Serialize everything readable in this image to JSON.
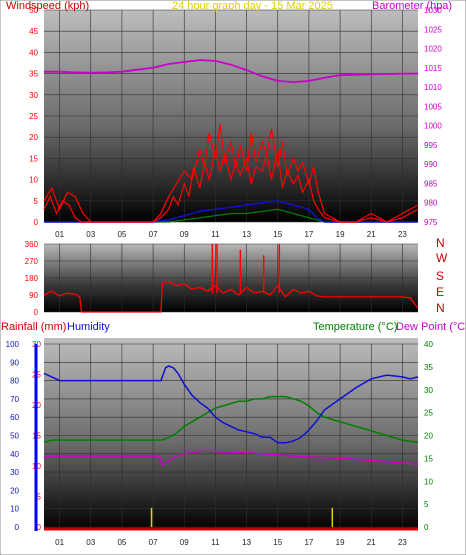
{
  "page": {
    "title": "24 hour graph day - 15 Mar 2025"
  },
  "colors": {
    "title": "#e0d000",
    "wind": "#ff0000",
    "barometer": "#cc00cc",
    "humidity": "#1010d0",
    "temperature": "#008000",
    "dewpoint": "#cc00cc",
    "rainfall": "#0000ff",
    "compass": "#cc0000",
    "grid": "#2e2e2e"
  },
  "chart_data": [
    {
      "id": "wind_baro",
      "type": "line",
      "title": "24 hour graph day - 15 Mar 2025",
      "ylabel_left": "Windspeed (kph)",
      "ylabel_right": "Barometer (hpa)",
      "ylim_left": [
        0,
        50
      ],
      "ylim_right": [
        975,
        1030
      ],
      "yticks_left": [
        "0",
        "5",
        "10",
        "15",
        "20",
        "25",
        "30",
        "35",
        "40",
        "45",
        "50"
      ],
      "yticks_right": [
        "975",
        "980",
        "985",
        "990",
        "995",
        "1000",
        "1005",
        "1010",
        "1015",
        "1020",
        "1025",
        "1030"
      ],
      "xlim": [
        0,
        24
      ],
      "xticks": [
        "01",
        "03",
        "05",
        "07",
        "09",
        "11",
        "13",
        "15",
        "17",
        "19",
        "21",
        "23"
      ],
      "grid": true,
      "series": [
        {
          "name": "Barometer",
          "axis": "right",
          "x": [
            0,
            1,
            2,
            3,
            4,
            5,
            6,
            7,
            8,
            9,
            10,
            11,
            12,
            13,
            14,
            15,
            16,
            17,
            18,
            19,
            20,
            21,
            22,
            23,
            24
          ],
          "values": [
            1014,
            1014,
            1013.8,
            1013.7,
            1013.8,
            1014,
            1014.5,
            1015,
            1016,
            1016.5,
            1017,
            1016.8,
            1015.8,
            1014.4,
            1012.8,
            1011.6,
            1011.3,
            1011.6,
            1012.4,
            1013.1,
            1013.2,
            1013.3,
            1013.4,
            1013.5,
            1013.5
          ]
        },
        {
          "name": "Windspeed",
          "axis": "left",
          "x": [
            0,
            0.4,
            0.8,
            1.2,
            1.6,
            2.0,
            2.4,
            3,
            4,
            5,
            6,
            7,
            7.5,
            8,
            8.3,
            8.6,
            9,
            9.3,
            9.6,
            10,
            10.3,
            10.6,
            11,
            11.3,
            11.6,
            12,
            12.3,
            12.6,
            13,
            13.3,
            13.6,
            14,
            14.3,
            14.6,
            15,
            15.3,
            15.6,
            16,
            16.3,
            16.6,
            17,
            17.3,
            17.6,
            18,
            19,
            20,
            21,
            22,
            23,
            23.5,
            24
          ],
          "values": [
            3,
            6,
            2,
            5,
            4,
            1,
            0,
            0,
            0,
            0,
            0,
            0,
            1,
            3,
            6,
            4,
            9,
            6,
            13,
            8,
            14,
            10,
            17,
            12,
            16,
            10,
            14,
            11,
            15,
            9,
            13,
            12,
            16,
            10,
            17,
            8,
            12,
            9,
            11,
            7,
            10,
            5,
            3,
            1,
            0,
            0,
            1,
            0,
            1,
            2,
            3
          ]
        },
        {
          "name": "Gust",
          "axis": "left",
          "x": [
            0,
            0.5,
            1,
            1.5,
            2,
            2.5,
            3,
            6,
            7,
            7.5,
            8,
            8.5,
            9,
            9.5,
            10,
            10.3,
            10.6,
            11,
            11.3,
            11.6,
            12,
            12.3,
            12.6,
            13,
            13.3,
            13.6,
            14,
            14.3,
            14.6,
            15,
            15.3,
            15.6,
            16,
            16.3,
            16.6,
            17,
            17.3,
            17.6,
            18,
            19,
            20,
            21,
            22,
            23,
            24
          ],
          "values": [
            5,
            8,
            3,
            7,
            6,
            2,
            0,
            0,
            0,
            2,
            6,
            9,
            12,
            10,
            17,
            13,
            21,
            15,
            23,
            14,
            19,
            13,
            18,
            12,
            21,
            14,
            19,
            16,
            22,
            13,
            19,
            11,
            15,
            12,
            14,
            9,
            13,
            7,
            2,
            0,
            0,
            2,
            0,
            2,
            4
          ]
        },
        {
          "name": "Wind average",
          "axis": "left",
          "x": [
            0,
            3,
            7,
            8,
            9,
            10,
            11,
            12,
            13,
            14,
            15,
            16,
            17,
            17.5,
            18,
            24
          ],
          "values": [
            0,
            0,
            0,
            0.5,
            1.5,
            2.5,
            3,
            3.5,
            4,
            4.5,
            5,
            4,
            3,
            1,
            0,
            0
          ]
        },
        {
          "name": "Wind low",
          "axis": "left",
          "x": [
            0,
            8,
            9,
            10,
            11,
            12,
            13,
            14,
            15,
            16,
            17,
            18,
            24
          ],
          "values": [
            0,
            0,
            0.5,
            1,
            1.5,
            2,
            2,
            2.5,
            3,
            2,
            1,
            0,
            0
          ]
        }
      ]
    },
    {
      "id": "direction",
      "type": "line",
      "ylim": [
        0,
        360
      ],
      "yticks_left": [
        "0",
        "90",
        "180",
        "270",
        "360"
      ],
      "compass_labels": [
        "N",
        "W",
        "S",
        "E",
        "N"
      ],
      "xlim": [
        0,
        24
      ],
      "grid": true,
      "series": [
        {
          "name": "Wind direction",
          "x": [
            0,
            0.5,
            1,
            1.5,
            2,
            2.3,
            2.4,
            6,
            7.5,
            7.6,
            8,
            8.5,
            9,
            9.5,
            10,
            10.5,
            11,
            11.5,
            12,
            12.5,
            13,
            13.5,
            14,
            14.5,
            15,
            15.5,
            16,
            16.5,
            17,
            17.5,
            18,
            19,
            20,
            21,
            22,
            23,
            23.5,
            24
          ],
          "values": [
            90,
            110,
            85,
            100,
            95,
            80,
            0,
            0,
            0,
            150,
            160,
            140,
            150,
            120,
            130,
            110,
            140,
            100,
            120,
            90,
            130,
            100,
            110,
            90,
            140,
            80,
            120,
            100,
            110,
            85,
            80,
            80,
            80,
            80,
            80,
            80,
            75,
            20
          ],
          "spikes_x": [
            10.8,
            11.1,
            12.6,
            14.1,
            15.1
          ],
          "spikes_values": [
            360,
            360,
            330,
            300,
            360
          ]
        }
      ]
    },
    {
      "id": "temp_hum",
      "type": "line",
      "ylabel_left_1": "Rainfall (mm)",
      "ylabel_left_2": "Humidity",
      "ylabel_right_1": "Temperature (°C)",
      "ylabel_right_2": "Dew Point (°C)",
      "ylim_rain": [
        0,
        30
      ],
      "ylim_humidity": [
        0,
        100
      ],
      "ylim_temp": [
        0,
        40
      ],
      "yticks_rain": [
        "0",
        "5",
        "10",
        "15",
        "20",
        "25",
        "30"
      ],
      "yticks_humidity": [
        "0",
        "10",
        "20",
        "30",
        "40",
        "50",
        "60",
        "70",
        "80",
        "90",
        "100"
      ],
      "yticks_temp": [
        "0",
        "5",
        "10",
        "15",
        "20",
        "25",
        "30",
        "35",
        "40"
      ],
      "xlim": [
        0,
        24
      ],
      "xticks": [
        "01",
        "03",
        "05",
        "07",
        "09",
        "11",
        "13",
        "15",
        "17",
        "19",
        "21",
        "23"
      ],
      "grid": true,
      "series": [
        {
          "name": "Humidity",
          "x": [
            0,
            0.5,
            1,
            2,
            3,
            4,
            5,
            6,
            7,
            7.5,
            7.8,
            8,
            8.3,
            8.6,
            9,
            9.5,
            10,
            10.5,
            11,
            11.5,
            12,
            12.5,
            13,
            13.5,
            14,
            14.5,
            15,
            15.5,
            16,
            16.5,
            17,
            17.5,
            18,
            19,
            20,
            21,
            22,
            23,
            23.5,
            24
          ],
          "values": [
            84,
            82,
            80,
            80,
            80,
            80,
            80,
            80,
            80,
            80,
            87,
            88,
            87,
            84,
            78,
            72,
            68,
            65,
            60,
            57,
            55,
            53,
            52,
            51,
            49,
            49,
            46,
            46,
            47,
            49,
            53,
            58,
            64,
            70,
            76,
            81,
            83,
            82,
            81,
            82
          ]
        },
        {
          "name": "Temperature",
          "x": [
            0,
            0.5,
            1,
            2,
            3,
            4,
            5,
            6,
            7,
            7.5,
            8,
            8.5,
            9,
            9.5,
            10,
            10.5,
            11,
            11.5,
            12,
            12.5,
            13,
            13.5,
            14,
            14.5,
            15,
            15.5,
            16,
            16.5,
            17,
            17.5,
            18,
            19,
            20,
            21,
            22,
            23,
            24
          ],
          "values": [
            18.5,
            19,
            19,
            19,
            19,
            19,
            19,
            19,
            19,
            19,
            19.5,
            20.5,
            22,
            23,
            24,
            25,
            26,
            26.5,
            27,
            27.5,
            27.5,
            28,
            28,
            28.5,
            28.5,
            28.5,
            28,
            27.5,
            26.5,
            25,
            24,
            23,
            22,
            21,
            20,
            19,
            18.5
          ]
        },
        {
          "name": "Dew Point",
          "x": [
            0,
            0.5,
            1,
            2,
            3,
            4,
            5,
            6,
            7,
            7.4,
            7.6,
            8,
            8.5,
            9,
            9.5,
            10,
            11,
            12,
            13,
            14,
            15,
            16,
            17,
            18,
            19,
            20,
            21,
            22,
            23,
            24
          ],
          "values": [
            15.2,
            15.5,
            15.5,
            15.5,
            15.5,
            15.5,
            15.5,
            15.5,
            15.5,
            15.5,
            13.5,
            14.5,
            15.5,
            16,
            16.2,
            16.5,
            16.5,
            16.3,
            16.2,
            16,
            15.8,
            15.5,
            15.3,
            15.2,
            15,
            14.8,
            14.6,
            14.3,
            14,
            13.8
          ]
        },
        {
          "name": "Rainfall",
          "x": [
            6.9,
            18.5
          ],
          "values": [
            1.5,
            1.5
          ]
        }
      ]
    }
  ]
}
